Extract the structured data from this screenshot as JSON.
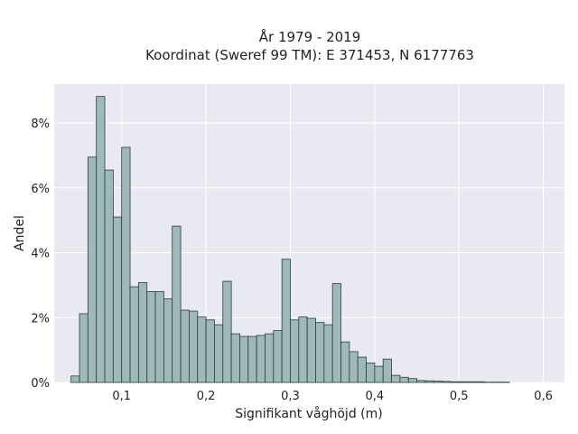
{
  "chart_data": {
    "type": "bar",
    "title": "År 1979 - 2019",
    "subtitle": "Koordinat (Sweref 99 TM): E 371453, N 6177763",
    "xlabel": "Signifikant våghöjd (m)",
    "ylabel": "Andel",
    "xlim": [
      0.02,
      0.625
    ],
    "ylim": [
      0,
      9.2
    ],
    "bin_width": 0.01,
    "bin_start": 0.04,
    "values": [
      0.2,
      2.12,
      6.95,
      8.82,
      6.55,
      5.1,
      7.25,
      2.95,
      3.08,
      2.8,
      2.8,
      2.58,
      4.82,
      2.23,
      2.2,
      2.02,
      1.93,
      1.78,
      3.12,
      1.5,
      1.42,
      1.42,
      1.45,
      1.5,
      1.6,
      3.8,
      1.93,
      2.02,
      1.98,
      1.85,
      1.78,
      3.05,
      1.25,
      0.95,
      0.78,
      0.6,
      0.5,
      0.72,
      0.22,
      0.16,
      0.12,
      0.06,
      0.05,
      0.04,
      0.03,
      0.02,
      0.02,
      0.02,
      0.02,
      0.01,
      0.01,
      0.01
    ],
    "x_ticks": [
      {
        "value": 0.1,
        "label": "0,1"
      },
      {
        "value": 0.2,
        "label": "0,2"
      },
      {
        "value": 0.3,
        "label": "0,3"
      },
      {
        "value": 0.4,
        "label": "0,4"
      },
      {
        "value": 0.5,
        "label": "0,5"
      },
      {
        "value": 0.6,
        "label": "0,6"
      }
    ],
    "y_ticks": [
      {
        "value": 0,
        "label": "0%"
      },
      {
        "value": 2,
        "label": "2%"
      },
      {
        "value": 4,
        "label": "4%"
      },
      {
        "value": 6,
        "label": "6%"
      },
      {
        "value": 8,
        "label": "8%"
      }
    ],
    "grid": true,
    "colors": {
      "bar_fill": "#9fb8b8",
      "bar_stroke": "#2f3b3b",
      "plot_bg": "#e9e9f1",
      "grid": "#ffffff"
    }
  }
}
